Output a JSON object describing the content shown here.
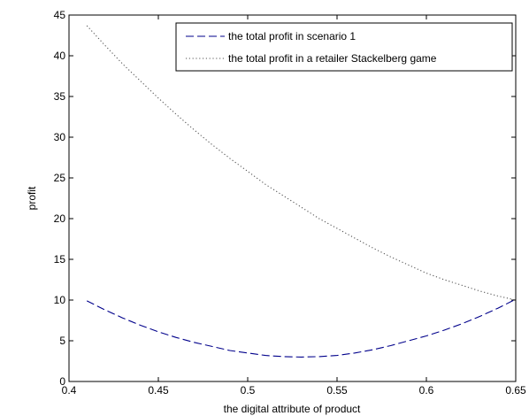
{
  "chart_data": {
    "type": "line",
    "title": "",
    "xlabel": "the digital attribute of product",
    "ylabel": "profit",
    "xlim": [
      0.4,
      0.65
    ],
    "ylim": [
      0,
      45
    ],
    "xticks": [
      0.4,
      0.45,
      0.5,
      0.55,
      0.6,
      0.65
    ],
    "xtick_labels": [
      "0.4",
      "0.45",
      "0.5",
      "0.55",
      "0.6",
      "0.65"
    ],
    "yticks": [
      0,
      5,
      10,
      15,
      20,
      25,
      30,
      35,
      40,
      45
    ],
    "ytick_labels": [
      "0",
      "5",
      "10",
      "15",
      "20",
      "25",
      "30",
      "35",
      "40",
      "45"
    ],
    "grid": false,
    "legend_position": "top-right",
    "series": [
      {
        "name": "the total profit in scenario 1",
        "style": "dashed",
        "color": "#00008b",
        "x": [
          0.41,
          0.42,
          0.43,
          0.44,
          0.45,
          0.46,
          0.47,
          0.48,
          0.49,
          0.5,
          0.51,
          0.52,
          0.53,
          0.54,
          0.55,
          0.56,
          0.57,
          0.58,
          0.59,
          0.6,
          0.61,
          0.62,
          0.63,
          0.64,
          0.65
        ],
        "y": [
          9.9,
          8.8,
          7.8,
          6.9,
          6.1,
          5.4,
          4.8,
          4.3,
          3.8,
          3.5,
          3.2,
          3.05,
          3.0,
          3.05,
          3.2,
          3.5,
          3.9,
          4.4,
          5.0,
          5.6,
          6.3,
          7.1,
          8.0,
          9.0,
          10.1
        ]
      },
      {
        "name": "the total profit in a retailer Stackelberg game",
        "style": "dotted",
        "color": "#555555",
        "x": [
          0.41,
          0.42,
          0.43,
          0.44,
          0.45,
          0.46,
          0.47,
          0.48,
          0.49,
          0.5,
          0.51,
          0.52,
          0.53,
          0.54,
          0.55,
          0.56,
          0.57,
          0.58,
          0.59,
          0.6,
          0.61,
          0.62,
          0.63,
          0.64,
          0.65
        ],
        "y": [
          43.7,
          41.3,
          39.0,
          36.9,
          34.8,
          32.8,
          30.9,
          29.1,
          27.4,
          25.8,
          24.2,
          22.8,
          21.4,
          20.0,
          18.8,
          17.6,
          16.4,
          15.3,
          14.3,
          13.3,
          12.5,
          11.8,
          11.1,
          10.5,
          10.0
        ]
      }
    ]
  }
}
